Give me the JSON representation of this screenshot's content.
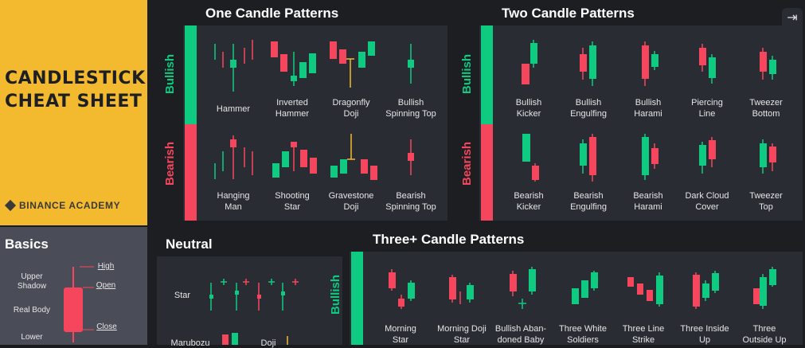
{
  "left": {
    "title_line1": "CANDLESTICK",
    "title_line2": "CHEAT SHEET",
    "brand": "BINANCE ACADEMY",
    "basics": {
      "title": "Basics",
      "upper_shadow": "Upper\nShadow",
      "real_body": "Real Body",
      "lower": "Lower",
      "high": "High",
      "open": "Open",
      "close": "Close"
    }
  },
  "sections": {
    "one": {
      "title": "One Candle Patterns",
      "bullish": "Bullish",
      "bearish": "Bearish",
      "bull_labels": [
        "Hammer",
        "Inverted\nHammer",
        "Dragonfly\nDoji",
        "Bullish\nSpinning Top"
      ],
      "bear_labels": [
        "Hanging\nMan",
        "Shooting\nStar",
        "Gravestone\nDoji",
        "Bearish\nSpinning Top"
      ]
    },
    "two": {
      "title": "Two Candle Patterns",
      "bullish": "Bullish",
      "bearish": "Bearish",
      "bull_labels": [
        "Bullish\nKicker",
        "Bullish\nEngulfing",
        "Bullish\nHarami",
        "Piercing\nLine",
        "Tweezer\nBottom"
      ],
      "bear_labels": [
        "Bearish\nKicker",
        "Bearish\nEngulfing",
        "Bearish\nHarami",
        "Dark Cloud\nCover",
        "Tweezer\nTop"
      ]
    },
    "neutral": {
      "title": "Neutral",
      "star": "Star",
      "marubozu": "Marubozu",
      "doji": "Doji"
    },
    "three": {
      "title": "Three+ Candle Patterns",
      "bullish": "Bullish",
      "labels": [
        "Morning\nStar",
        "Morning Doji\nStar",
        "Bullish Aban-\ndoned Baby",
        "Three White\nSoldiers",
        "Three Line\nStrike",
        "Three Inside\nUp",
        "Three\nOutside Up"
      ]
    }
  },
  "colors": {
    "green": "#0ecb81",
    "red": "#f6465d",
    "yellow": "#f3ba2f"
  }
}
